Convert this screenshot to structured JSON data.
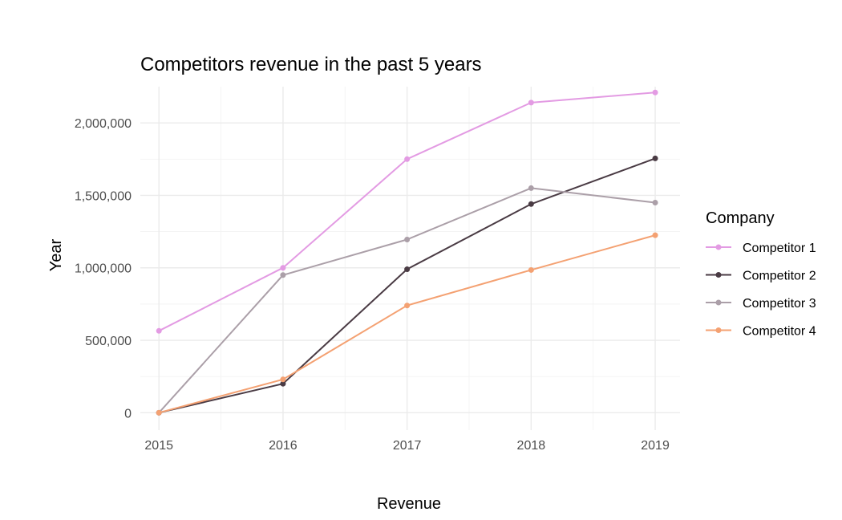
{
  "chart_data": {
    "type": "line",
    "title": "Competitors revenue in the past 5 years",
    "xlabel": "Revenue",
    "ylabel": "Year",
    "x": [
      2015,
      2016,
      2017,
      2018,
      2019
    ],
    "x_tick_labels": [
      "2015",
      "2016",
      "2017",
      "2018",
      "2019"
    ],
    "y_ticks": [
      0,
      500000,
      1000000,
      1500000,
      2000000
    ],
    "y_tick_labels": [
      "0",
      "500,000",
      "1,000,000",
      "1,500,000",
      "2,000,000"
    ],
    "xlim": [
      2014.85,
      2019.2
    ],
    "ylim": [
      -120000,
      2250000
    ],
    "grid": true,
    "legend": {
      "title": "Company",
      "position": "right"
    },
    "series": [
      {
        "name": "Competitor 1",
        "color": "#e39be3",
        "values": [
          565000,
          1000000,
          1750000,
          2140000,
          2210000
        ]
      },
      {
        "name": "Competitor 2",
        "color": "#4a3b44",
        "values": [
          0,
          200000,
          990000,
          1440000,
          1755000
        ]
      },
      {
        "name": "Competitor 3",
        "color": "#ab9fa8",
        "values": [
          0,
          950000,
          1195000,
          1550000,
          1450000
        ]
      },
      {
        "name": "Competitor 4",
        "color": "#f4a172",
        "values": [
          0,
          230000,
          740000,
          985000,
          1225000
        ]
      }
    ]
  }
}
